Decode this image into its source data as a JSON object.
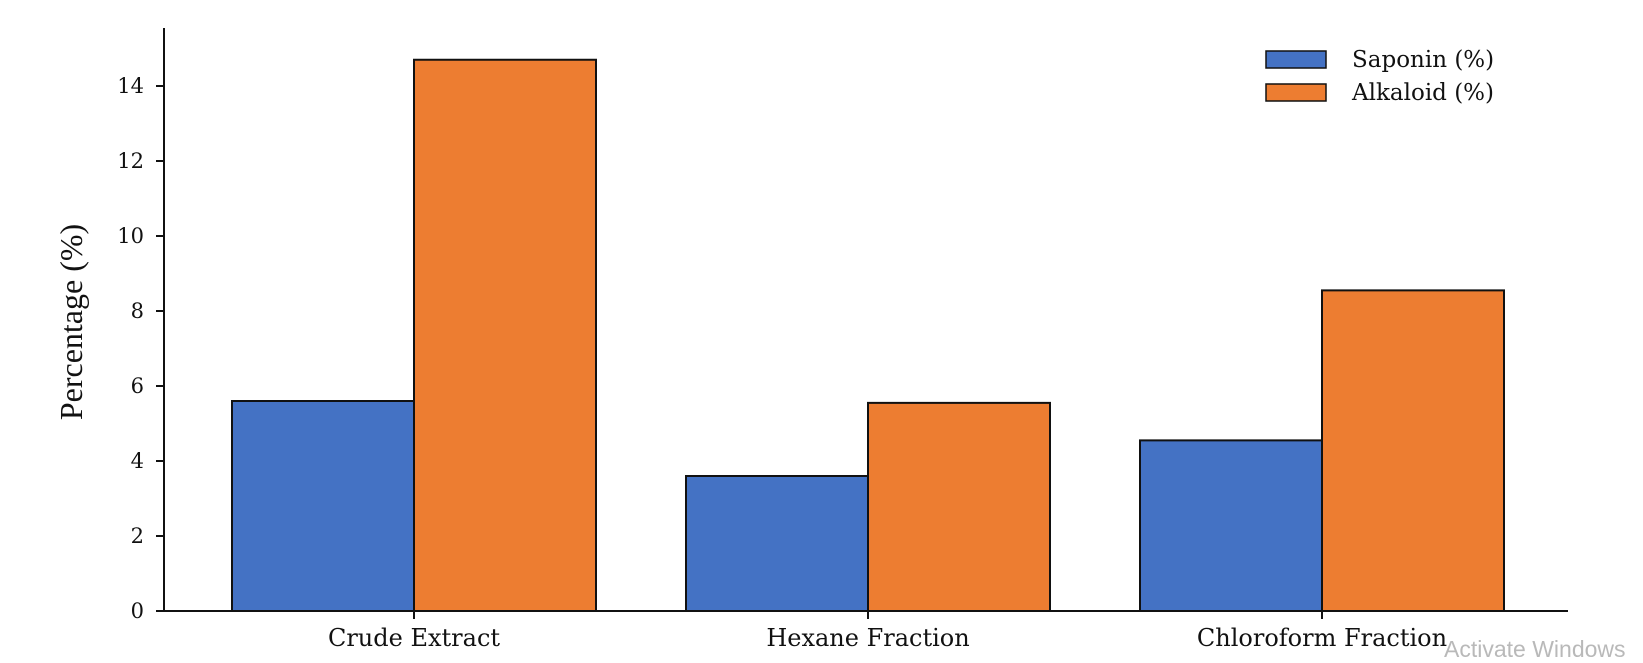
{
  "chart_data": {
    "type": "bar",
    "categories": [
      "Crude Extract",
      "Hexane Fraction",
      "Chloroform Fraction"
    ],
    "series": [
      {
        "name": "Saponin (%)",
        "values": [
          5.6,
          3.6,
          4.55
        ],
        "color": "#4472c4"
      },
      {
        "name": "Alkaloid (%)",
        "values": [
          14.7,
          5.55,
          8.55
        ],
        "color": "#ed7d31"
      }
    ],
    "title": "",
    "xlabel": "",
    "ylabel": "Percentage (%)",
    "ylim": [
      0,
      15.5
    ],
    "yticks": [
      0,
      2,
      4,
      6,
      8,
      10,
      12,
      14
    ],
    "grid": false,
    "legend_position": "top-right"
  },
  "watermark": "Activate Windows"
}
